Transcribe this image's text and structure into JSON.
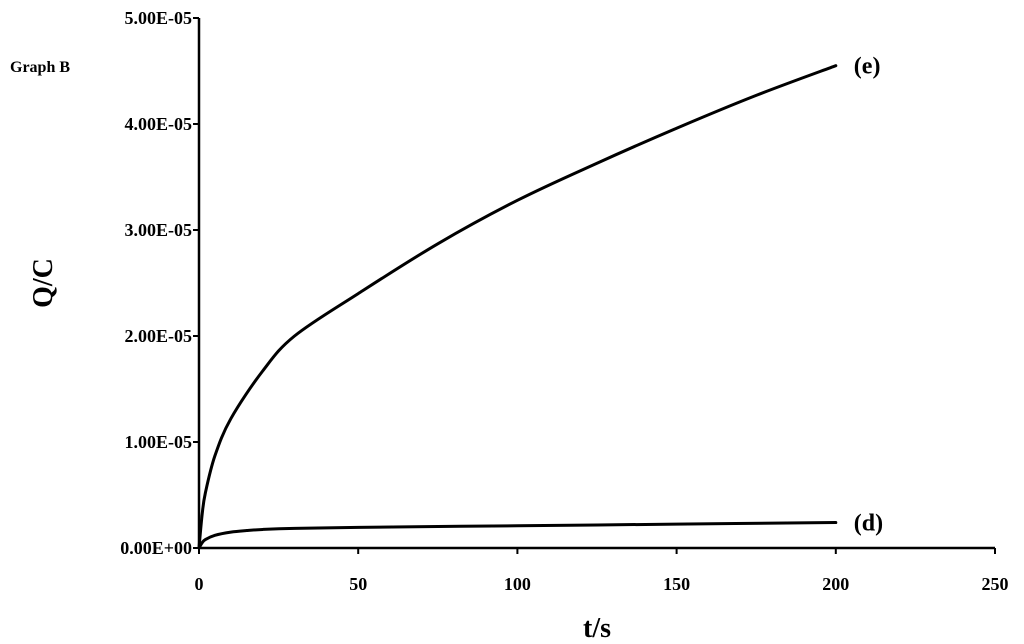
{
  "chart_data": {
    "type": "line",
    "title": "Graph B",
    "xlabel": "t/s",
    "ylabel": "Q/C",
    "xlim": [
      0,
      250
    ],
    "ylim": [
      0,
      5e-05
    ],
    "x_ticks": [
      0,
      50,
      100,
      150,
      200,
      250
    ],
    "x_tick_labels": [
      "0",
      "50",
      "100",
      "150",
      "200",
      "250"
    ],
    "y_ticks": [
      0,
      1e-05,
      2e-05,
      3e-05,
      4e-05,
      5e-05
    ],
    "y_tick_labels": [
      "0.00E+00",
      "1.00E-05",
      "2.00E-05",
      "3.00E-05",
      "4.00E-05",
      "5.00E-05"
    ],
    "grid": false,
    "legend": "none",
    "series": [
      {
        "label": "(e)",
        "x": [
          0,
          1,
          2,
          5,
          10,
          20,
          30,
          50,
          75,
          100,
          125,
          150,
          175,
          200
        ],
        "y": [
          0,
          3.2e-06,
          5.2e-06,
          8.7e-06,
          1.22e-05,
          1.67e-05,
          2e-05,
          2.4e-05,
          2.87e-05,
          3.28e-05,
          3.63e-05,
          3.96e-05,
          4.27e-05,
          4.55e-05
        ]
      },
      {
        "label": "(d)",
        "x": [
          0,
          1,
          2,
          5,
          10,
          15,
          20,
          30,
          50,
          100,
          150,
          200
        ],
        "y": [
          0,
          5e-07,
          8e-07,
          1.2e-06,
          1.5e-06,
          1.65e-06,
          1.75e-06,
          1.85e-06,
          1.95e-06,
          2.1e-06,
          2.25e-06,
          2.4e-06
        ]
      }
    ]
  }
}
